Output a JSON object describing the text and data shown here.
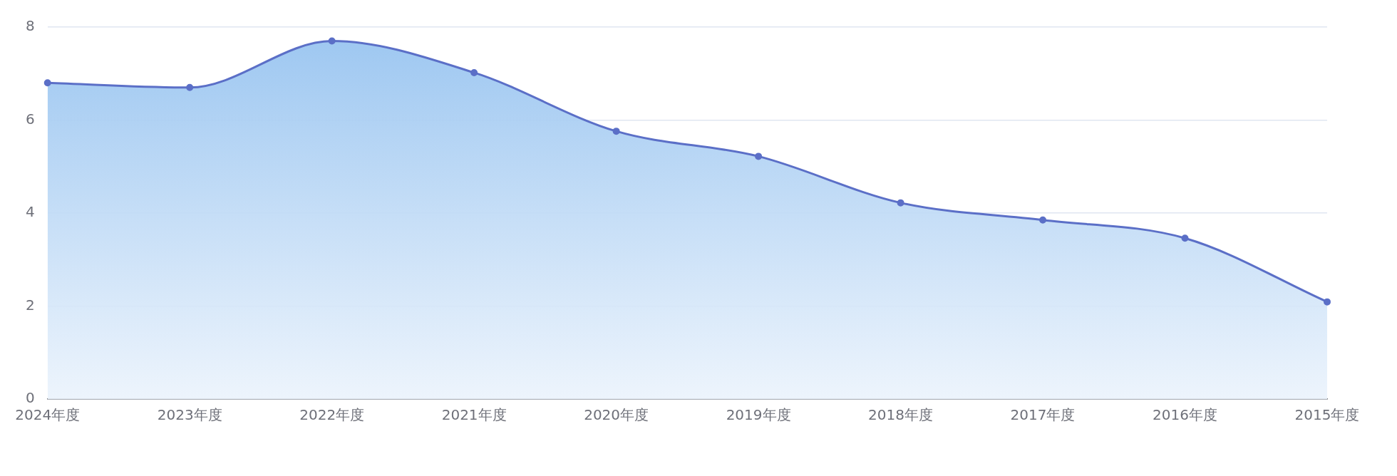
{
  "chart_data": {
    "type": "area",
    "categories": [
      "2024年度",
      "2023年度",
      "2022年度",
      "2021年度",
      "2020年度",
      "2019年度",
      "2018年度",
      "2017年度",
      "2016年度",
      "2015年度"
    ],
    "series": [
      {
        "color": "#5b6fc7",
        "values": [
          6.8,
          6.7,
          7.7,
          7.02,
          5.76,
          5.22,
          4.22,
          3.85,
          3.46,
          2.09
        ]
      }
    ],
    "ylim": [
      0,
      8
    ],
    "yticks": [
      0,
      2,
      4,
      6,
      8
    ],
    "grid": "y",
    "legend": false,
    "marker": "circle",
    "line_style": "solid"
  }
}
